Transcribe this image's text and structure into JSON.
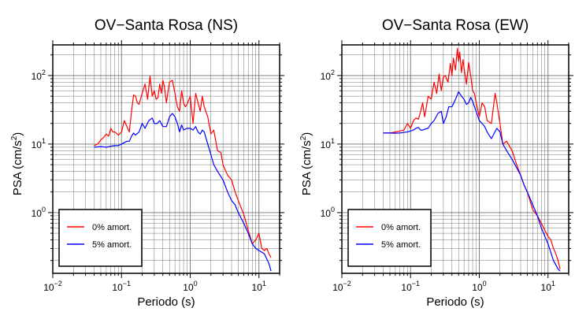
{
  "chart_data": [
    {
      "type": "line",
      "title": "OV−Santa Rosa (NS)",
      "xlabel": "Periodo (s)",
      "ylabel_main": "PSA (cm/s",
      "ylabel_sup": "2",
      "ylabel_tail": ")",
      "xscale": "log",
      "yscale": "log",
      "xlim": [
        0.01,
        20
      ],
      "ylim": [
        0.13,
        280
      ],
      "grid": true,
      "legend_position": "bottom-left",
      "xticks": [
        {
          "base": "10",
          "exp": "−2",
          "value": 0.01
        },
        {
          "base": "10",
          "exp": "−1",
          "value": 0.1
        },
        {
          "base": "10",
          "exp": "0",
          "value": 1
        },
        {
          "base": "10",
          "exp": "1",
          "value": 10
        }
      ],
      "yticks": [
        {
          "base": "10",
          "exp": "0",
          "value": 1
        },
        {
          "base": "10",
          "exp": "1",
          "value": 10
        },
        {
          "base": "10",
          "exp": "2",
          "value": 100
        }
      ],
      "series": [
        {
          "name": "0% amort.",
          "color": "#ff0000",
          "x": [
            0.04,
            0.045,
            0.05,
            0.055,
            0.06,
            0.065,
            0.07,
            0.075,
            0.08,
            0.09,
            0.1,
            0.11,
            0.12,
            0.13,
            0.14,
            0.15,
            0.16,
            0.17,
            0.18,
            0.2,
            0.22,
            0.24,
            0.26,
            0.28,
            0.3,
            0.32,
            0.34,
            0.36,
            0.38,
            0.4,
            0.42,
            0.45,
            0.48,
            0.5,
            0.55,
            0.6,
            0.65,
            0.7,
            0.75,
            0.8,
            0.85,
            0.9,
            1.0,
            1.1,
            1.2,
            1.3,
            1.4,
            1.5,
            1.6,
            1.8,
            2.0,
            2.2,
            2.5,
            2.8,
            3.0,
            3.5,
            4.0,
            4.5,
            5.0,
            6.0,
            7.0,
            8.0,
            9.0,
            10.0,
            11.0,
            12.0,
            13.0,
            14.0,
            15.0
          ],
          "y": [
            9.5,
            10,
            11.5,
            12.5,
            14,
            13,
            17,
            15,
            15,
            13.5,
            15,
            22,
            18,
            15,
            30,
            52,
            50,
            40,
            38,
            55,
            75,
            45,
            98,
            50,
            60,
            45,
            48,
            75,
            55,
            85,
            70,
            40,
            62,
            80,
            85,
            55,
            35,
            30,
            60,
            40,
            35,
            38,
            50,
            20,
            55,
            40,
            30,
            50,
            35,
            25,
            14,
            16,
            8,
            7.5,
            5,
            3.5,
            3,
            2,
            1.5,
            0.95,
            0.55,
            0.35,
            0.4,
            0.5,
            0.3,
            0.28,
            0.3,
            0.25,
            0.22
          ]
        },
        {
          "name": "5% amort.",
          "color": "#0000ff",
          "x": [
            0.04,
            0.05,
            0.06,
            0.07,
            0.08,
            0.09,
            0.1,
            0.11,
            0.12,
            0.13,
            0.14,
            0.15,
            0.16,
            0.18,
            0.2,
            0.22,
            0.25,
            0.28,
            0.3,
            0.33,
            0.36,
            0.4,
            0.45,
            0.5,
            0.55,
            0.6,
            0.65,
            0.7,
            0.75,
            0.8,
            0.9,
            1.0,
            1.1,
            1.2,
            1.3,
            1.4,
            1.5,
            1.6,
            1.8,
            2.0,
            2.2,
            2.5,
            3.0,
            3.5,
            4.0,
            4.5,
            5.0,
            6.0,
            7.0,
            8.0,
            9.0,
            10.0,
            12.0,
            14.0,
            15.0
          ],
          "y": [
            9.0,
            9.2,
            9.0,
            9.3,
            9.5,
            9.5,
            10.0,
            10.5,
            11.0,
            11.0,
            13.0,
            14.5,
            13.5,
            15.0,
            20.0,
            17.0,
            22.0,
            24.0,
            20.0,
            20.0,
            22.0,
            18.0,
            18.0,
            25.0,
            28.0,
            25.0,
            20.0,
            15.0,
            19.0,
            16.0,
            17.0,
            17.0,
            16.0,
            18.0,
            15.0,
            14.0,
            16.0,
            15.0,
            10.0,
            7.0,
            5.0,
            4.0,
            3.0,
            2.0,
            1.5,
            1.3,
            1.0,
            0.7,
            0.5,
            0.35,
            0.3,
            0.28,
            0.25,
            0.18,
            0.14
          ]
        }
      ]
    },
    {
      "type": "line",
      "title": "OV−Santa Rosa (EW)",
      "xlabel": "Periodo (s)",
      "ylabel_main": "PSA (cm/s",
      "ylabel_sup": "2",
      "ylabel_tail": ")",
      "xscale": "log",
      "yscale": "log",
      "xlim": [
        0.01,
        20
      ],
      "ylim": [
        0.13,
        280
      ],
      "grid": true,
      "legend_position": "bottom-left",
      "xticks": [
        {
          "base": "10",
          "exp": "−2",
          "value": 0.01
        },
        {
          "base": "10",
          "exp": "−1",
          "value": 0.1
        },
        {
          "base": "10",
          "exp": "0",
          "value": 1
        },
        {
          "base": "10",
          "exp": "1",
          "value": 10
        }
      ],
      "yticks": [
        {
          "base": "10",
          "exp": "0",
          "value": 1
        },
        {
          "base": "10",
          "exp": "1",
          "value": 10
        },
        {
          "base": "10",
          "exp": "2",
          "value": 100
        }
      ],
      "series": [
        {
          "name": "0% amort.",
          "color": "#ff0000",
          "x": [
            0.04,
            0.05,
            0.06,
            0.07,
            0.08,
            0.09,
            0.1,
            0.11,
            0.12,
            0.13,
            0.14,
            0.15,
            0.16,
            0.17,
            0.18,
            0.2,
            0.22,
            0.24,
            0.26,
            0.28,
            0.3,
            0.32,
            0.35,
            0.38,
            0.4,
            0.42,
            0.45,
            0.48,
            0.5,
            0.52,
            0.55,
            0.58,
            0.6,
            0.65,
            0.7,
            0.75,
            0.8,
            0.85,
            0.9,
            1.0,
            1.1,
            1.2,
            1.3,
            1.5,
            1.7,
            1.8,
            2.0,
            2.2,
            2.5,
            3.0,
            3.5,
            4.0,
            4.5,
            5.0,
            6.0,
            7.0,
            8.0,
            9.0,
            10.0,
            11.0,
            12.0,
            13.0,
            14.0,
            15.0
          ],
          "y": [
            14.5,
            14.5,
            15.0,
            15.5,
            16.0,
            20.0,
            17.0,
            22.0,
            24.0,
            23.0,
            30.0,
            40.0,
            25.0,
            35.0,
            50.0,
            45.0,
            80.0,
            55.0,
            105.0,
            60.0,
            95.0,
            100.0,
            80.0,
            150.0,
            100.0,
            180.0,
            120.0,
            250.0,
            160.0,
            220.0,
            110.0,
            170.0,
            130.0,
            75.0,
            155.0,
            100.0,
            60.0,
            55.0,
            40.0,
            25.0,
            40.0,
            35.0,
            22.0,
            20.0,
            55.0,
            40.0,
            20.0,
            10.0,
            11.0,
            8.0,
            5.0,
            3.5,
            2.5,
            2.0,
            1.1,
            0.9,
            0.7,
            0.55,
            0.45,
            0.4,
            0.3,
            0.25,
            0.2,
            0.15
          ]
        },
        {
          "name": "5% amort.",
          "color": "#0000ff",
          "x": [
            0.04,
            0.05,
            0.06,
            0.07,
            0.08,
            0.09,
            0.1,
            0.11,
            0.12,
            0.13,
            0.14,
            0.15,
            0.16,
            0.18,
            0.2,
            0.22,
            0.25,
            0.28,
            0.3,
            0.33,
            0.36,
            0.4,
            0.45,
            0.5,
            0.55,
            0.6,
            0.65,
            0.7,
            0.75,
            0.8,
            0.9,
            1.0,
            1.1,
            1.2,
            1.3,
            1.5,
            1.8,
            2.0,
            2.2,
            2.5,
            3.0,
            3.5,
            4.0,
            4.5,
            5.0,
            6.0,
            7.0,
            8.0,
            9.0,
            10.0,
            12.0,
            14.0,
            15.0
          ],
          "y": [
            14.5,
            14.5,
            14.4,
            14.5,
            14.8,
            15.0,
            15.5,
            16.0,
            17.0,
            17.5,
            16.0,
            16.0,
            16.5,
            17.0,
            20.0,
            22.0,
            28.0,
            30.0,
            20.0,
            25.0,
            35.0,
            35.0,
            45.0,
            58.0,
            50.0,
            45.0,
            38.0,
            40.0,
            48.0,
            42.0,
            30.0,
            22.0,
            20.0,
            18.0,
            15.0,
            12.0,
            17.0,
            15.0,
            10.0,
            8.0,
            6.0,
            4.5,
            3.5,
            2.5,
            2.0,
            1.3,
            0.9,
            0.6,
            0.45,
            0.35,
            0.2,
            0.15,
            0.14
          ]
        }
      ]
    }
  ]
}
